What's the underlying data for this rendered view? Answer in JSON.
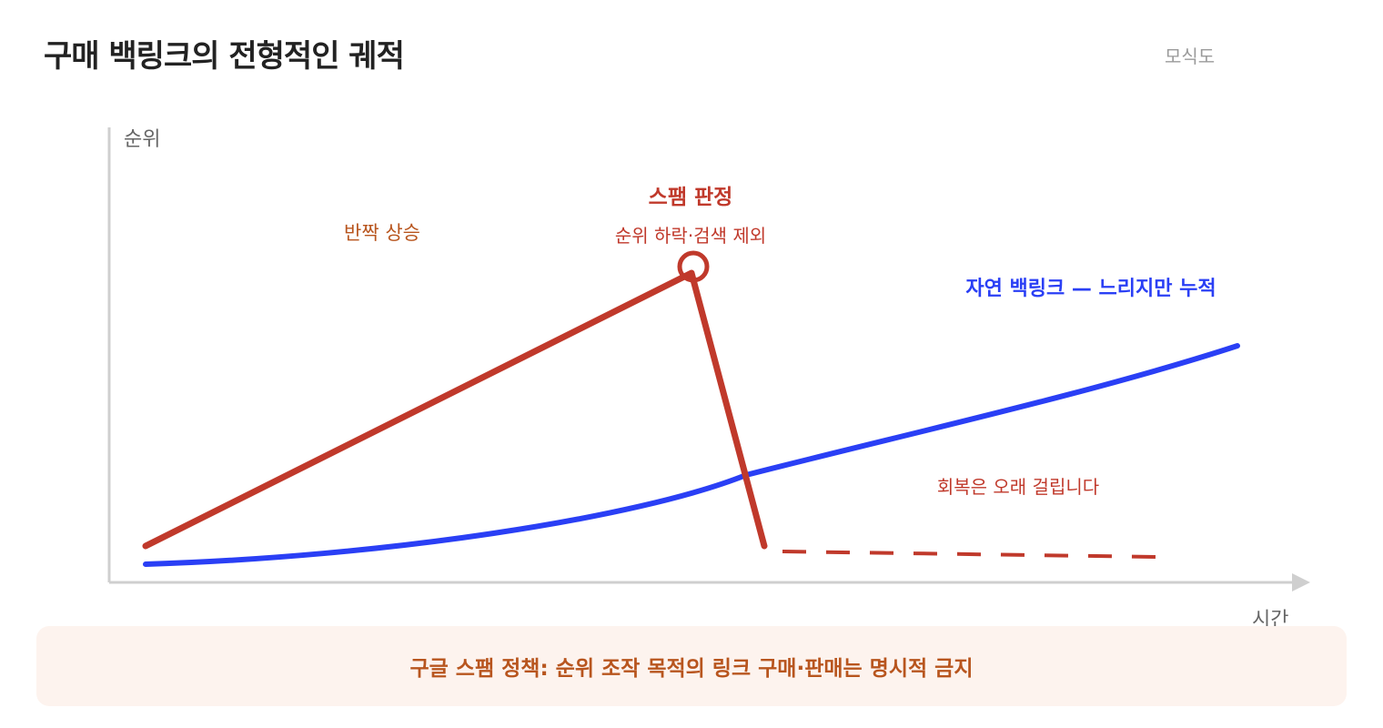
{
  "header": {
    "title": "구매 백링크의 전형적인 궤적",
    "badge": "모식도"
  },
  "axes": {
    "y_label": "순위",
    "x_label": "시간"
  },
  "annotations": {
    "spike_label": "반짝 상승",
    "penalty_title": "스팸 판정",
    "penalty_detail": "순위 하락·검색 제외",
    "organic_label": "자연 백링크 — 느리지만 누적",
    "recovery_label": "회복은 오래 걸립니다"
  },
  "footer": {
    "note": "구글 스팸 정책: 순위 조작 목적의 링크 구매·판매는 명시적 금지"
  },
  "colors": {
    "purchased": "#c0392b",
    "organic": "#2a3ff5",
    "spike_label": "#b8551e",
    "axis": "#cfcfcf"
  },
  "chart_data": {
    "type": "line",
    "series": [
      {
        "name": "구매 백링크",
        "style": "solid-then-dashed",
        "values": "rise, drop, flat"
      },
      {
        "name": "자연 백링크",
        "style": "solid",
        "values": "gradual rise"
      }
    ]
  }
}
